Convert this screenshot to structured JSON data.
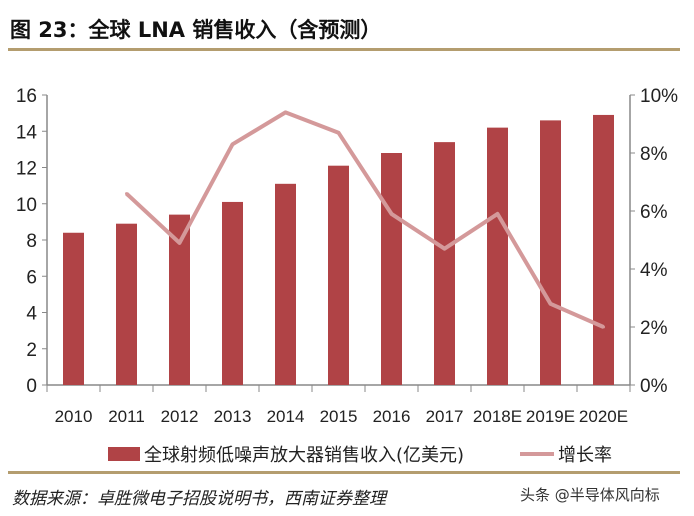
{
  "title": "图 23：全球 LNA 销售收入（含预测）",
  "source": "数据来源：卓胜微电子招股说明书，西南证券整理",
  "watermark": "头条 @半导体风向标",
  "chart_data": {
    "type": "bar+line",
    "categories": [
      "2010",
      "2011",
      "2012",
      "2013",
      "2014",
      "2015",
      "2016",
      "2017",
      "2018E",
      "2019E",
      "2020E"
    ],
    "series": [
      {
        "name": "全球射频低噪声放大器销售收入(亿美元)",
        "type": "bar",
        "axis": "left",
        "color": "#b04346",
        "values": [
          8.4,
          8.9,
          9.4,
          10.1,
          11.1,
          12.1,
          12.8,
          13.4,
          14.2,
          14.6,
          14.9
        ]
      },
      {
        "name": "增长率",
        "type": "line",
        "axis": "right",
        "color": "#d4999a",
        "values": [
          null,
          6.6,
          4.9,
          8.3,
          9.4,
          8.7,
          5.9,
          4.7,
          5.9,
          2.8,
          2.0
        ]
      }
    ],
    "yleft": {
      "lim": [
        0,
        16
      ],
      "ticks": [
        "0",
        "2",
        "4",
        "6",
        "8",
        "10",
        "12",
        "14",
        "16"
      ]
    },
    "yright": {
      "lim": [
        0,
        10
      ],
      "ticks": [
        "0%",
        "2%",
        "4%",
        "6%",
        "8%",
        "10%"
      ]
    },
    "grid": false,
    "legend": "bottom"
  }
}
